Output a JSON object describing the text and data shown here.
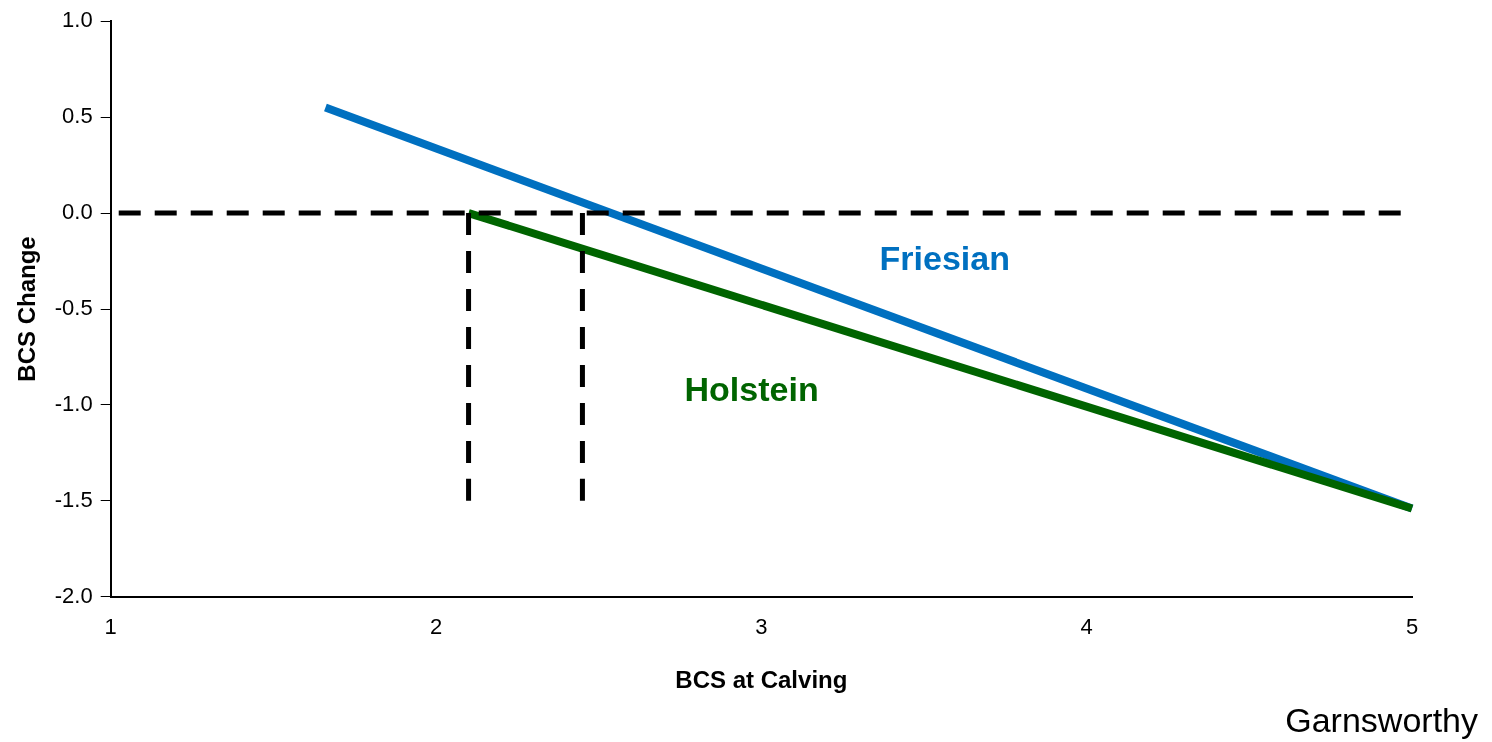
{
  "chart_data": {
    "type": "line",
    "xlabel": "BCS at Calving",
    "ylabel": "BCS Change",
    "series": [
      {
        "name": "Friesian",
        "color": "#0070c0",
        "x": [
          1.66,
          5.0
        ],
        "values": [
          0.55,
          -1.54
        ]
      },
      {
        "name": "Holstein",
        "color": "#006400",
        "x": [
          2.1,
          5.0
        ],
        "values": [
          0.0,
          -1.54
        ]
      },
      {
        "color": "#000000",
        "type": "line",
        "line_style": "dashed",
        "x": [
          2.1,
          2.1
        ],
        "values": [
          0.0,
          -1.5
        ]
      },
      {
        "color": "#000000",
        "type": "line",
        "line_style": "dashed",
        "x": [
          2.45,
          2.45
        ],
        "values": [
          0.0,
          -1.5
        ]
      }
    ],
    "ref_lines": [
      {
        "axis": "y",
        "value": 0,
        "color": "#000000",
        "line_style": "dashed"
      }
    ],
    "xlim": [
      1,
      5
    ],
    "xticks": [
      1,
      2,
      3,
      4,
      5
    ],
    "ylim": [
      -2,
      1
    ],
    "yticks": [
      {
        "value": -2,
        "label": "-2.0"
      },
      {
        "value": -1.5,
        "label": "-1.5"
      },
      {
        "value": -1,
        "label": "-1.0"
      },
      {
        "value": -0.5,
        "label": "-0.5"
      },
      {
        "value": 0,
        "label": "0.0"
      },
      {
        "value": 0.5,
        "label": "0.5"
      },
      {
        "value": 1,
        "label": "1.0"
      }
    ],
    "grid": false,
    "legend": false,
    "marker": "none",
    "annotations": [
      "Garnsworthy"
    ]
  }
}
